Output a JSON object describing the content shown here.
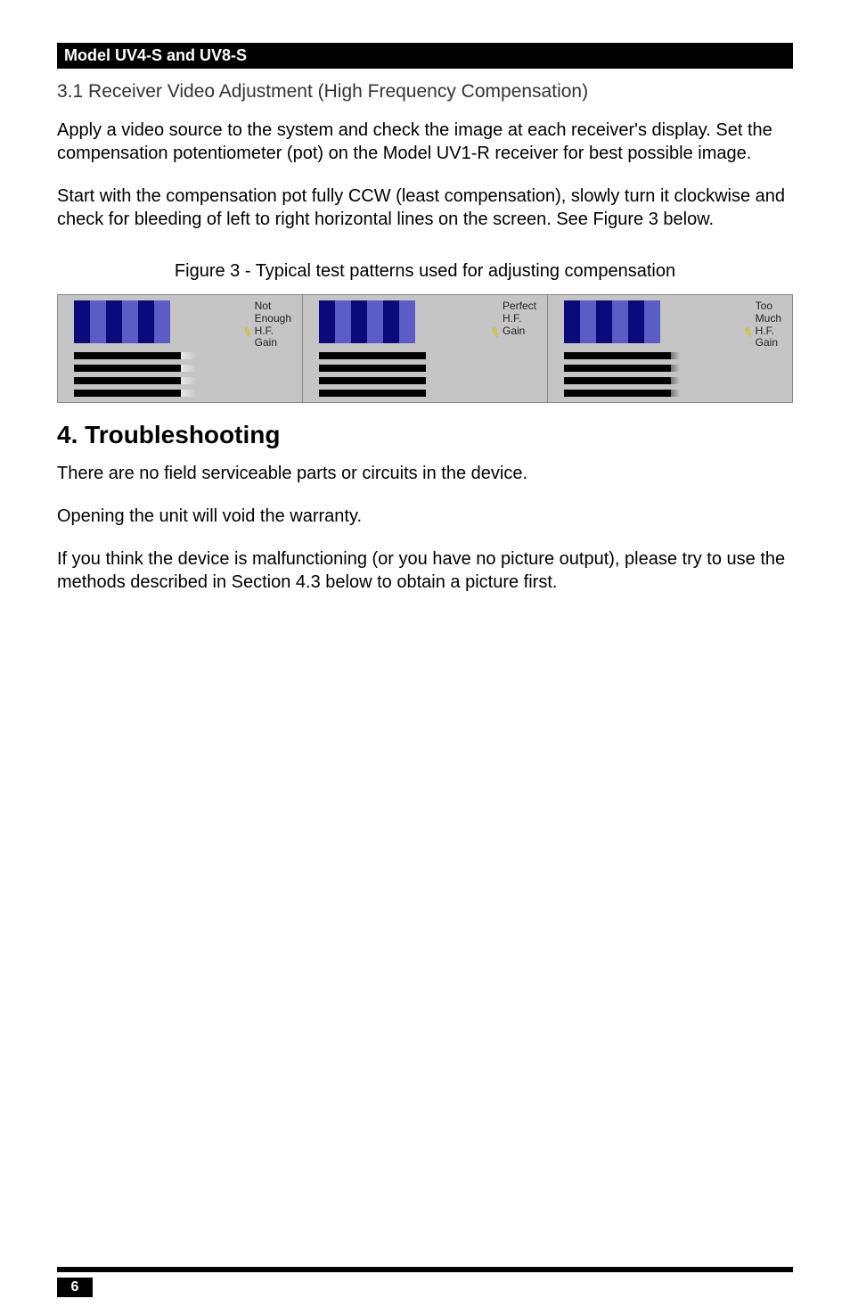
{
  "header": {
    "title": "Model UV4-S and UV8-S"
  },
  "section31": {
    "heading": "3.1 Receiver Video Adjustment (High Frequency Compensation)",
    "para1": "Apply a video source to the system and check the image at each receiver's display. Set the compensation potentiometer (pot) on the Model UV1-R receiver for best possible image.",
    "para2": "Start with the compensation pot fully CCW (least compensation), slowly turn it clockwise and check for bleeding of left to right horizontal lines on the screen. See Figure 3 below."
  },
  "figure3": {
    "caption": "Figure 3 - Typical test patterns used for adjusting compensation",
    "patterns": [
      {
        "l1": "Not",
        "l2": "Enough",
        "l3": "H.F.",
        "l4": "Gain",
        "smear": "light"
      },
      {
        "l1": "",
        "l2": "Perfect",
        "l3": "H.F.",
        "l4": "Gain",
        "smear": "none"
      },
      {
        "l1": "Too",
        "l2": "Much",
        "l3": "H.F.",
        "l4": "Gain",
        "smear": "dark"
      }
    ],
    "colors": {
      "cell_bg": "#c5c5c5",
      "vbar_dark": "#0a0a7a",
      "vbar_light": "#5c5cc7",
      "hbar": "#000000",
      "arrow": "#cfc200"
    }
  },
  "section4": {
    "heading": "4. Troubleshooting",
    "para1": "There are no field serviceable parts or circuits in the device.",
    "para2": "Opening the unit will void the warranty.",
    "para3": "If you think the device is malfunctioning (or you have no picture output), please try to use the methods described in Section 4.3 below to obtain a picture first."
  },
  "footer": {
    "pageNum": "6"
  }
}
